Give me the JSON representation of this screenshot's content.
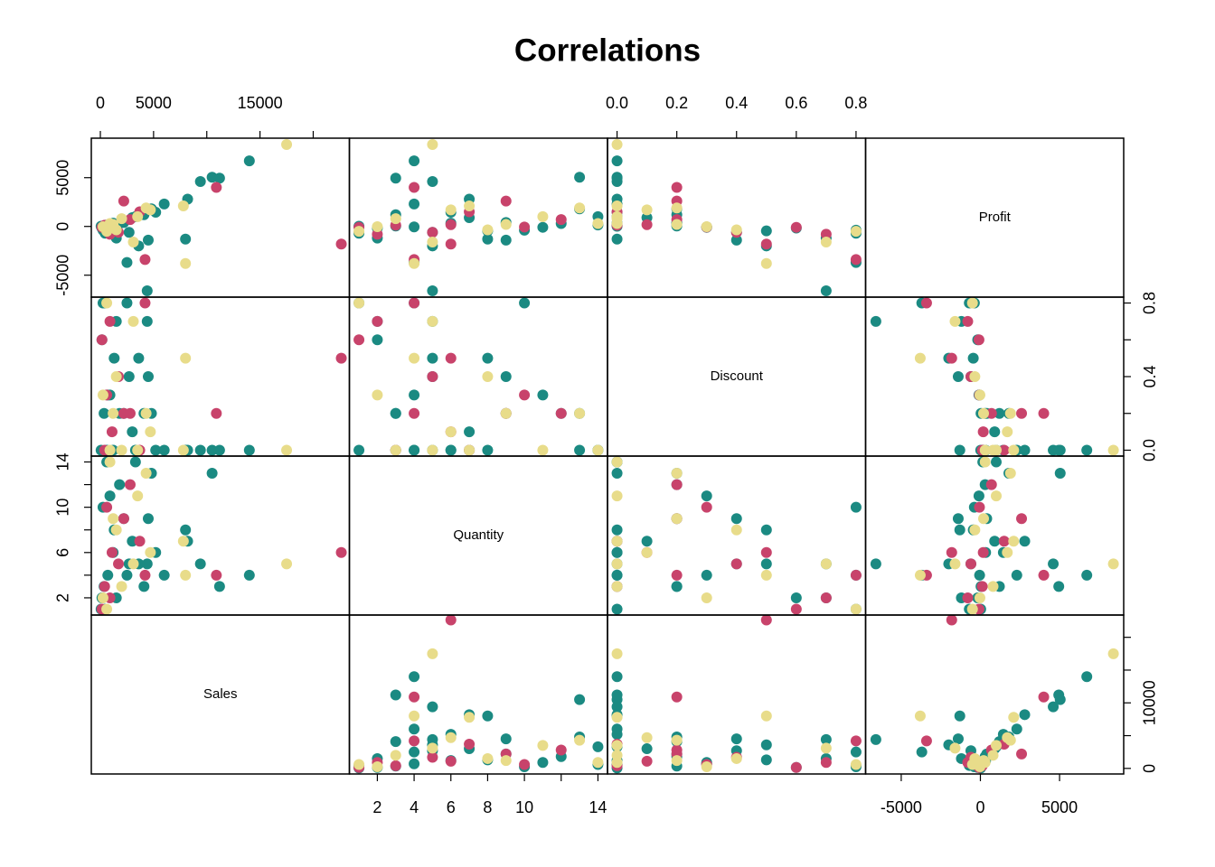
{
  "chart_data": {
    "type": "scatter-matrix",
    "title": "Correlations",
    "variables": [
      {
        "name": "Sales",
        "lim": [
          -850,
          23400
        ],
        "xticks": [
          0,
          5000,
          {
            "value": 10000,
            "label": null
          },
          15000,
          {
            "value": 20000,
            "label": null
          }
        ],
        "yticks": [
          0,
          {
            "value": 5000,
            "label": null
          },
          10000,
          {
            "value": 15000,
            "label": null
          },
          {
            "value": 20000,
            "label": null
          }
        ]
      },
      {
        "name": "Quantity",
        "lim": [
          0.48,
          14.52
        ],
        "xticks": [
          2,
          4,
          6,
          8,
          10,
          {
            "value": 12,
            "label": null
          },
          14
        ],
        "yticks": [
          2,
          {
            "value": 4,
            "label": null
          },
          6,
          {
            "value": 8,
            "label": null
          },
          10,
          {
            "value": 12,
            "label": null
          },
          14
        ]
      },
      {
        "name": "Discount",
        "lim": [
          -0.032,
          0.832
        ],
        "xticks": [
          {
            "value": 0,
            "label": "0.0"
          },
          {
            "value": 0.2,
            "label": "0.2"
          },
          {
            "value": 0.4,
            "label": "0.4"
          },
          {
            "value": 0.6,
            "label": "0.6"
          },
          {
            "value": 0.8,
            "label": "0.8"
          }
        ],
        "yticks": [
          {
            "value": 0,
            "label": "0.0"
          },
          {
            "value": 0.2,
            "label": null
          },
          {
            "value": 0.4,
            "label": "0.4"
          },
          {
            "value": 0.6,
            "label": null
          },
          {
            "value": 0.8,
            "label": "0.8"
          }
        ]
      },
      {
        "name": "Profit",
        "lim": [
          -7250,
          9050
        ],
        "xticks": [
          -5000,
          0,
          5000
        ],
        "yticks": [
          -5000,
          0,
          5000
        ]
      }
    ],
    "series": [
      {
        "color": "#1b8a82",
        "values": [
          [
            13999,
            4,
            0,
            6720
          ],
          [
            10500,
            13,
            0,
            5040
          ],
          [
            11200,
            3,
            0,
            4950
          ],
          [
            4400,
            5,
            0.7,
            -6600
          ],
          [
            8000,
            8,
            0,
            -1300
          ],
          [
            9400,
            5,
            0,
            4600
          ],
          [
            8200,
            7,
            0,
            2800
          ],
          [
            4800,
            13,
            0.2,
            1800
          ],
          [
            2500,
            4,
            0.8,
            -3700
          ],
          [
            3600,
            5,
            0.5,
            -2000
          ],
          [
            1500,
            2,
            0.7,
            -1200
          ],
          [
            450,
            1,
            0.8,
            -700
          ],
          [
            2200,
            9,
            0.2,
            400
          ],
          [
            600,
            14,
            0,
            150
          ],
          [
            350,
            3,
            0.2,
            40
          ],
          [
            1200,
            6,
            0,
            330
          ],
          [
            3000,
            7,
            0.1,
            900
          ],
          [
            150,
            2,
            0.6,
            -170
          ],
          [
            900,
            11,
            0.3,
            -90
          ],
          [
            2700,
            5,
            0.4,
            -600
          ],
          [
            4100,
            3,
            0.2,
            1200
          ],
          [
            70,
            1,
            0,
            20
          ],
          [
            5200,
            6,
            0,
            1450
          ],
          [
            1800,
            12,
            0.2,
            300
          ],
          [
            4500,
            9,
            0.4,
            -1400
          ],
          [
            6000,
            4,
            0,
            2300
          ],
          [
            250,
            10,
            0.8,
            -380
          ],
          [
            1300,
            8,
            0.5,
            -450
          ],
          [
            3300,
            14,
            0,
            1000
          ],
          [
            700,
            4,
            0.3,
            -50
          ]
        ]
      },
      {
        "color": "#c8436b",
        "values": [
          [
            22638,
            6,
            0.5,
            -1811
          ],
          [
            10900,
            4,
            0.2,
            4000
          ],
          [
            2200,
            9,
            0.2,
            2600
          ],
          [
            4200,
            4,
            0.8,
            -3400
          ],
          [
            1700,
            5,
            0.4,
            -600
          ],
          [
            400,
            3,
            0,
            120
          ],
          [
            3700,
            7,
            0,
            1500
          ],
          [
            900,
            2,
            0.7,
            -800
          ],
          [
            2800,
            12,
            0.2,
            700
          ],
          [
            150,
            1,
            0.6,
            -90
          ],
          [
            1100,
            6,
            0.1,
            180
          ],
          [
            600,
            10,
            0.3,
            -60
          ]
        ]
      },
      {
        "color": "#e8dc8a",
        "values": [
          [
            17500,
            5,
            0,
            8400
          ],
          [
            8000,
            4,
            0.5,
            -3800
          ],
          [
            7800,
            7,
            0,
            2100
          ],
          [
            4300,
            13,
            0.2,
            1900
          ],
          [
            2000,
            3,
            0,
            800
          ],
          [
            600,
            1,
            0.8,
            -500
          ],
          [
            3100,
            5,
            0.7,
            -1600
          ],
          [
            1200,
            9,
            0.2,
            200
          ],
          [
            250,
            2,
            0.3,
            -30
          ],
          [
            4700,
            6,
            0.1,
            1700
          ],
          [
            900,
            14,
            0,
            300
          ],
          [
            1500,
            8,
            0.4,
            -350
          ],
          [
            3500,
            11,
            0,
            1000
          ]
        ]
      }
    ]
  }
}
